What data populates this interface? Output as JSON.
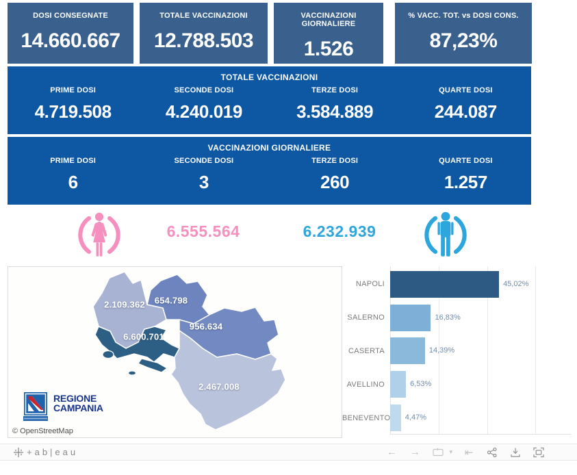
{
  "kpi_cards": [
    {
      "label": "DOSI  CONSEGNATE",
      "value": "14.660.667"
    },
    {
      "label": "TOTALE VACCINAZIONI",
      "value": "12.788.503"
    },
    {
      "label": "VACCINAZIONI GIORNALIERE",
      "value": "1.526"
    },
    {
      "label": "% VACC. TOT. vs DOSI CONS.",
      "value": "87,23%"
    }
  ],
  "totale_band": {
    "title": "TOTALE VACCINAZIONI",
    "columns": [
      {
        "label": "PRIME DOSI",
        "value": "4.719.508"
      },
      {
        "label": "SECONDE DOSI",
        "value": "4.240.019"
      },
      {
        "label": "TERZE DOSI",
        "value": "3.584.889"
      },
      {
        "label": "QUARTE DOSI",
        "value": "244.087"
      }
    ]
  },
  "giornaliere_band": {
    "title": "VACCINAZIONI GIORNALIERE",
    "columns": [
      {
        "label": "PRIME DOSI",
        "value": "6"
      },
      {
        "label": "SECONDE DOSI",
        "value": "3"
      },
      {
        "label": "TERZE DOSI",
        "value": "260"
      },
      {
        "label": "QUARTE DOSI",
        "value": "1.257"
      }
    ]
  },
  "gender": {
    "female_total": "6.555.564",
    "male_total": "6.232.939",
    "female_color": "#F590BE",
    "male_color": "#2CA6DC"
  },
  "map": {
    "attribution": "© OpenStreetMap",
    "logo_line1": "REGIONE",
    "logo_line2": "CAMPANIA"
  },
  "chart_data": [
    {
      "type": "bar",
      "title": "",
      "orientation": "horizontal",
      "categories": [
        "NAPOLI",
        "SALERNO",
        "CASERTA",
        "AVELLINO",
        "BENEVENTO"
      ],
      "values": [
        45.02,
        16.83,
        14.39,
        6.53,
        4.47
      ],
      "value_labels": [
        "45,02%",
        "16,83%",
        "14,39%",
        "6,53%",
        "4,47%"
      ],
      "bar_colors": [
        "#2D5A83",
        "#7EB0D7",
        "#8BB9DC",
        "#AFD0E8",
        "#C0DAED"
      ],
      "xlim": [
        0,
        75
      ],
      "gridlines": [
        20,
        40,
        60
      ],
      "grid": true,
      "legend": false,
      "unit": "%"
    },
    {
      "type": "choropleth",
      "title": "",
      "area": "Regione Campania",
      "labels": [
        "2.109.362",
        "654.798",
        "956.634",
        "6.600.701",
        "2.467.008"
      ],
      "values": [
        2109362,
        654798,
        956634,
        6600701,
        2467008
      ],
      "colors": [
        "#A8B3D3",
        "#6D84BE",
        "#7389C1",
        "#2D5F85",
        "#BAC3DC"
      ]
    }
  ],
  "footer": {
    "brand": "+ab|eau",
    "icons": [
      "undo",
      "redo",
      "replay",
      "replay-menu",
      "revert",
      "share",
      "download",
      "fullscreen"
    ]
  },
  "colors": {
    "kpi_bg": "#3A618E",
    "band_bg": "#0D57A3"
  }
}
